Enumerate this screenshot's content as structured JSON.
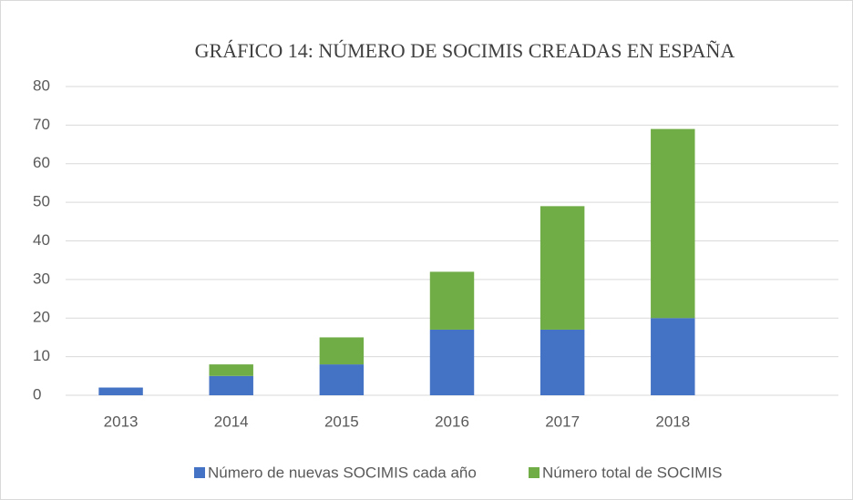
{
  "chart_data": {
    "type": "stacked_bar",
    "title": "GRÁFICO 14: NÚMERO DE SOCIMIS CREADAS EN ESPAÑA",
    "categories": [
      "2013",
      "2014",
      "2015",
      "2016",
      "2017",
      "2018",
      null
    ],
    "series": [
      {
        "name": "Número de nuevas SOCIMIS cada año",
        "color": "#4472c4",
        "values": [
          2,
          5,
          8,
          17,
          17,
          20,
          null
        ]
      },
      {
        "name": "Número total de SOCIMIS",
        "color": "#70ad47",
        "values": [
          0,
          3,
          7,
          15,
          32,
          49,
          null
        ]
      }
    ],
    "ylim": [
      0,
      80
    ],
    "yticks": [
      0,
      10,
      20,
      30,
      40,
      50,
      60,
      70,
      80
    ],
    "grid": true,
    "legend": "bottom"
  }
}
